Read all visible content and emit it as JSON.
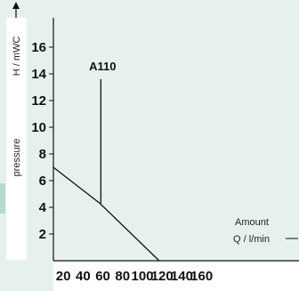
{
  "chart_data": {
    "type": "line",
    "ylabel": "H / mWC",
    "y_side_label": "pressure",
    "x_side_label_1": "Amount",
    "x_side_label_2": "Q / l/min",
    "xlim": [
      10,
      165
    ],
    "ylim": [
      0,
      16
    ],
    "x_ticks": [
      "20",
      "40",
      "60",
      "80",
      "100",
      "120",
      "140",
      "160"
    ],
    "y_ticks": [
      "2",
      "4",
      "6",
      "8",
      "10",
      "12",
      "14",
      "16"
    ],
    "grid": false,
    "series": [
      {
        "values": [
          [
            10,
            7.0
          ],
          [
            57,
            4.3
          ],
          [
            117,
            0.0
          ]
        ]
      }
    ],
    "annotations": [
      {
        "text": "A110",
        "x": 58,
        "y_top": 13.6,
        "y_bottom": 4.3
      }
    ],
    "colors": {
      "plot_bg": "#e6f1ee",
      "side_accent": "#b8d9d1",
      "line": "#111111"
    }
  }
}
